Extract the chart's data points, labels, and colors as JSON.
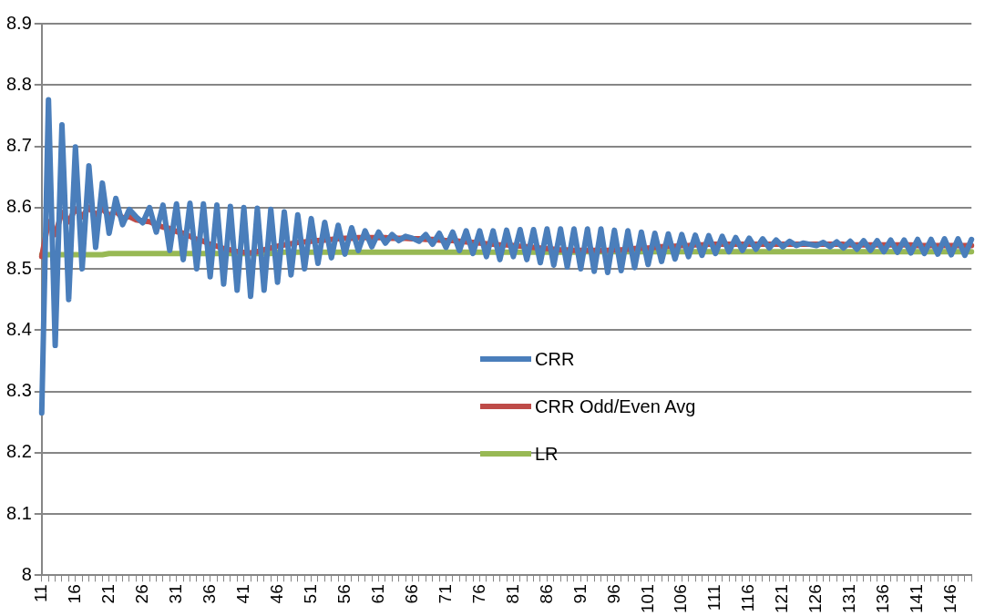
{
  "chart_data": {
    "type": "line",
    "categories": [
      "11",
      null,
      null,
      null,
      null,
      "16",
      null,
      null,
      null,
      null,
      "21",
      null,
      null,
      null,
      null,
      "26",
      null,
      null,
      null,
      null,
      "31",
      null,
      null,
      null,
      null,
      "36",
      null,
      null,
      null,
      null,
      "41",
      null,
      null,
      null,
      null,
      "46",
      null,
      null,
      null,
      null,
      "51",
      null,
      null,
      null,
      null,
      "56",
      null,
      null,
      null,
      null,
      "61",
      null,
      null,
      null,
      null,
      "66",
      null,
      null,
      null,
      null,
      "71",
      null,
      null,
      null,
      null,
      "76",
      null,
      null,
      null,
      null,
      "81",
      null,
      null,
      null,
      null,
      "86",
      null,
      null,
      null,
      null,
      "91",
      null,
      null,
      null,
      null,
      "96",
      null,
      null,
      null,
      null,
      "101",
      null,
      null,
      null,
      null,
      "106",
      null,
      null,
      null,
      null,
      "111",
      null,
      null,
      null,
      null,
      "116",
      null,
      null,
      null,
      null,
      "121",
      null,
      null,
      null,
      null,
      "126",
      null,
      null,
      null,
      null,
      "131",
      null,
      null,
      null,
      null,
      "136",
      null,
      null,
      null,
      null,
      "141",
      null,
      null,
      null,
      null,
      "146",
      null,
      null,
      null
    ],
    "series": [
      {
        "name": "CRR",
        "color": "#4a7ebb",
        "values": [
          8.265,
          8.776,
          8.375,
          8.735,
          8.45,
          8.699,
          8.5,
          8.668,
          8.535,
          8.64,
          8.558,
          8.615,
          8.572,
          8.597,
          8.585,
          8.575,
          8.6,
          8.56,
          8.604,
          8.53,
          8.606,
          8.515,
          8.607,
          8.5,
          8.606,
          8.487,
          8.604,
          8.475,
          8.602,
          8.465,
          8.6,
          8.455,
          8.599,
          8.465,
          8.597,
          8.478,
          8.593,
          8.49,
          8.588,
          8.5,
          8.582,
          8.509,
          8.576,
          8.518,
          8.571,
          8.524,
          8.567,
          8.53,
          8.562,
          8.536,
          8.56,
          8.542,
          8.556,
          8.546,
          8.553,
          8.55,
          8.545,
          8.556,
          8.54,
          8.558,
          8.535,
          8.56,
          8.53,
          8.562,
          8.525,
          8.562,
          8.52,
          8.562,
          8.515,
          8.563,
          8.52,
          8.564,
          8.515,
          8.564,
          8.51,
          8.565,
          8.506,
          8.565,
          8.503,
          8.565,
          8.5,
          8.565,
          8.496,
          8.565,
          8.494,
          8.563,
          8.497,
          8.562,
          8.502,
          8.56,
          8.507,
          8.558,
          8.512,
          8.557,
          8.516,
          8.556,
          8.52,
          8.555,
          8.522,
          8.554,
          8.525,
          8.553,
          8.528,
          8.551,
          8.53,
          8.55,
          8.532,
          8.549,
          8.534,
          8.547,
          8.536,
          8.545,
          8.538,
          8.542,
          8.54,
          8.538,
          8.543,
          8.536,
          8.544,
          8.534,
          8.545,
          8.532,
          8.546,
          8.53,
          8.546,
          8.528,
          8.547,
          8.527,
          8.547,
          8.526,
          8.548,
          8.525,
          8.548,
          8.524,
          8.549,
          8.523,
          8.549,
          8.522,
          8.548
        ]
      },
      {
        "name": "CRR Odd/Even Avg",
        "color": "#be4b48",
        "values": [
          8.52,
          8.577,
          8.556,
          8.592,
          8.577,
          8.598,
          8.585,
          8.6,
          8.588,
          8.598,
          8.587,
          8.594,
          8.583,
          8.585,
          8.58,
          8.578,
          8.577,
          8.572,
          8.568,
          8.566,
          8.561,
          8.558,
          8.553,
          8.548,
          8.545,
          8.54,
          8.537,
          8.533,
          8.531,
          8.528,
          8.527,
          8.526,
          8.528,
          8.531,
          8.534,
          8.537,
          8.539,
          8.541,
          8.543,
          8.544,
          8.545,
          8.546,
          8.547,
          8.548,
          8.549,
          8.55,
          8.55,
          8.551,
          8.551,
          8.551,
          8.551,
          8.551,
          8.55,
          8.55,
          8.55,
          8.549,
          8.549,
          8.548,
          8.548,
          8.547,
          8.546,
          8.546,
          8.545,
          8.544,
          8.543,
          8.542,
          8.541,
          8.54,
          8.539,
          8.539,
          8.538,
          8.537,
          8.536,
          8.535,
          8.534,
          8.533,
          8.532,
          8.531,
          8.531,
          8.53,
          8.53,
          8.53,
          8.53,
          8.53,
          8.53,
          8.531,
          8.531,
          8.532,
          8.533,
          8.534,
          8.534,
          8.535,
          8.536,
          8.537,
          8.537,
          8.538,
          8.538,
          8.539,
          8.539,
          8.54,
          8.54,
          8.54,
          8.54,
          8.54,
          8.54,
          8.54,
          8.54,
          8.54,
          8.54,
          8.54,
          8.54,
          8.54,
          8.54,
          8.54,
          8.54,
          8.54,
          8.54,
          8.54,
          8.54,
          8.54,
          8.539,
          8.539,
          8.539,
          8.539,
          8.539,
          8.539,
          8.539,
          8.539,
          8.539,
          8.539,
          8.538,
          8.538,
          8.538,
          8.538,
          8.538,
          8.538,
          8.538,
          8.538,
          8.538
        ]
      },
      {
        "name": "LR",
        "color": "#98b954",
        "values": [
          8.523,
          8.523,
          8.523,
          8.523,
          8.523,
          8.523,
          8.523,
          8.523,
          8.523,
          8.523,
          8.525,
          8.525,
          8.525,
          8.525,
          8.525,
          8.525,
          8.525,
          8.525,
          8.525,
          8.525,
          8.525,
          8.525,
          8.525,
          8.525,
          8.525,
          8.525,
          8.525,
          8.525,
          8.525,
          8.525,
          8.525,
          8.525,
          8.525,
          8.525,
          8.525,
          8.527,
          8.527,
          8.527,
          8.527,
          8.527,
          8.527,
          8.527,
          8.527,
          8.527,
          8.527,
          8.527,
          8.527,
          8.527,
          8.527,
          8.527,
          8.527,
          8.527,
          8.527,
          8.527,
          8.527,
          8.527,
          8.527,
          8.527,
          8.527,
          8.527,
          8.527,
          8.527,
          8.527,
          8.527,
          8.527,
          8.527,
          8.527,
          8.527,
          8.527,
          8.527,
          8.527,
          8.527,
          8.527,
          8.527,
          8.527,
          8.527,
          8.527,
          8.527,
          8.527,
          8.527,
          8.528,
          8.528,
          8.528,
          8.528,
          8.528,
          8.528,
          8.528,
          8.528,
          8.528,
          8.528,
          8.528,
          8.528,
          8.528,
          8.528,
          8.528,
          8.528,
          8.528,
          8.528,
          8.528,
          8.528,
          8.528,
          8.528,
          8.528,
          8.528,
          8.528,
          8.528,
          8.528,
          8.528,
          8.528,
          8.528,
          8.528,
          8.528,
          8.528,
          8.528,
          8.528,
          8.528,
          8.528,
          8.528,
          8.528,
          8.528,
          8.528,
          8.528,
          8.528,
          8.528,
          8.528,
          8.528,
          8.528,
          8.528,
          8.528,
          8.528,
          8.528,
          8.528,
          8.528,
          8.528,
          8.528,
          8.528,
          8.528,
          8.528,
          8.528
        ]
      }
    ],
    "ylim": [
      8,
      8.9
    ],
    "yticks": [
      8,
      8.1,
      8.2,
      8.3,
      8.4,
      8.5,
      8.6,
      8.7,
      8.8,
      8.9
    ],
    "grid": "y",
    "legend": "center"
  }
}
